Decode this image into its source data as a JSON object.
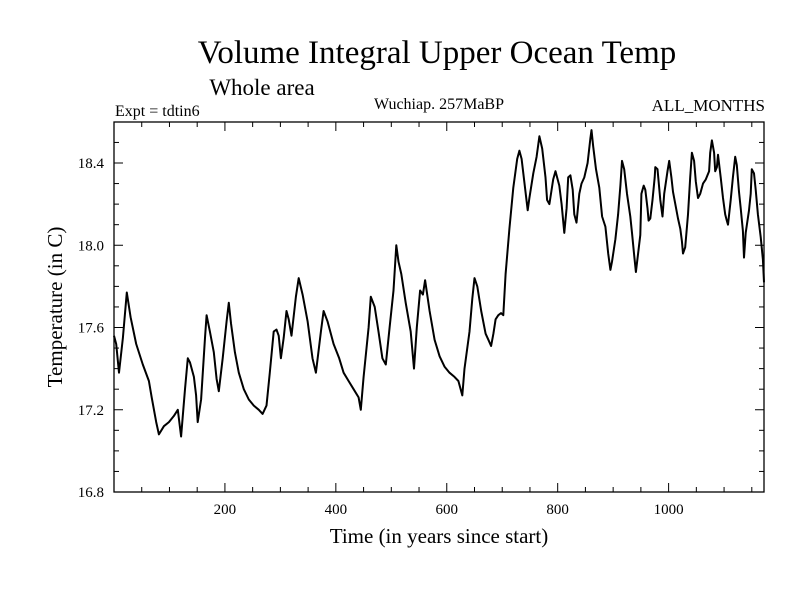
{
  "chart_data": {
    "type": "line",
    "title": "Volume Integral Upper Ocean Temp",
    "subtitle": "Whole area",
    "annotations": {
      "left": "Expt = tdtin6",
      "center": "Wuchiap. 257MaBP",
      "right": "ALL_MONTHS"
    },
    "xlabel": "Time (in years since start)",
    "ylabel": "Temperature (in C)",
    "xlim": [
      0,
      1172
    ],
    "ylim": [
      16.8,
      18.6
    ],
    "xticks": [
      200,
      400,
      600,
      800,
      1000
    ],
    "xtick_labels": [
      "200",
      "400",
      "600",
      "800",
      "1000"
    ],
    "xminor_step": 50,
    "yticks": [
      16.8,
      17.2,
      17.6,
      18.0,
      18.4
    ],
    "ytick_labels": [
      "16.8",
      "17.2",
      "17.6",
      "18.0",
      "18.4"
    ],
    "yminor_step": 0.1,
    "grid": false,
    "legend": "none",
    "series": [
      {
        "name": "Temperature",
        "color": "#000000",
        "x": [
          0,
          4,
          9,
          16,
          23,
          30,
          40,
          52,
          63,
          68,
          76,
          81,
          90,
          99,
          108,
          115,
          121,
          128,
          133,
          137,
          144,
          148,
          151,
          157,
          164,
          167,
          173,
          180,
          185,
          189,
          196,
          203,
          207,
          211,
          218,
          225,
          234,
          243,
          252,
          261,
          268,
          275,
          281,
          288,
          293,
          297,
          301,
          306,
          311,
          315,
          320,
          328,
          333,
          340,
          349,
          358,
          364,
          373,
          378,
          385,
          396,
          406,
          414,
          423,
          432,
          441,
          445,
          450,
          459,
          463,
          470,
          477,
          484,
          490,
          497,
          504,
          509,
          513,
          518,
          526,
          535,
          541,
          546,
          552,
          557,
          561,
          569,
          578,
          587,
          596,
          605,
          614,
          621,
          628,
          632,
          641,
          646,
          650,
          655,
          662,
          670,
          675,
          680,
          684,
          688,
          693,
          698,
          702,
          706,
          713,
          720,
          727,
          731,
          735,
          742,
          746,
          749,
          756,
          762,
          767,
          772,
          778,
          781,
          785,
          792,
          796,
          803,
          807,
          812,
          816,
          819,
          823,
          827,
          830,
          834,
          839,
          843,
          848,
          854,
          859,
          861,
          864,
          869,
          875,
          880,
          886,
          891,
          895,
          898,
          904,
          909,
          913,
          916,
          920,
          925,
          931,
          934,
          938,
          941,
          945,
          949,
          951,
          955,
          958,
          962,
          964,
          967,
          971,
          975,
          976,
          980,
          985,
          989,
          992,
          998,
          1001,
          1005,
          1008,
          1012,
          1017,
          1021,
          1024,
          1026,
          1030,
          1035,
          1039,
          1042,
          1046,
          1049,
          1053,
          1057,
          1062,
          1067,
          1073,
          1075,
          1078,
          1082,
          1084,
          1087,
          1089,
          1094,
          1098,
          1102,
          1105,
          1107,
          1112,
          1116,
          1120,
          1123,
          1127,
          1130,
          1134,
          1136,
          1139,
          1145,
          1148,
          1150,
          1154,
          1157,
          1161,
          1166,
          1170,
          1172
        ],
        "y": [
          17.56,
          17.52,
          17.38,
          17.55,
          17.77,
          17.65,
          17.52,
          17.42,
          17.34,
          17.26,
          17.14,
          17.08,
          17.12,
          17.14,
          17.17,
          17.2,
          17.07,
          17.3,
          17.45,
          17.43,
          17.36,
          17.27,
          17.14,
          17.25,
          17.55,
          17.66,
          17.58,
          17.48,
          17.35,
          17.29,
          17.45,
          17.63,
          17.72,
          17.62,
          17.48,
          17.38,
          17.3,
          17.25,
          17.22,
          17.2,
          17.18,
          17.22,
          17.38,
          17.58,
          17.59,
          17.56,
          17.45,
          17.55,
          17.68,
          17.64,
          17.56,
          17.75,
          17.84,
          17.76,
          17.63,
          17.45,
          17.38,
          17.58,
          17.68,
          17.63,
          17.52,
          17.45,
          17.38,
          17.34,
          17.3,
          17.26,
          17.2,
          17.36,
          17.6,
          17.75,
          17.7,
          17.58,
          17.45,
          17.42,
          17.6,
          17.78,
          18.0,
          17.92,
          17.86,
          17.72,
          17.58,
          17.4,
          17.6,
          17.78,
          17.76,
          17.83,
          17.68,
          17.54,
          17.46,
          17.41,
          17.38,
          17.36,
          17.34,
          17.27,
          17.4,
          17.58,
          17.74,
          17.84,
          17.8,
          17.68,
          17.57,
          17.54,
          17.51,
          17.57,
          17.64,
          17.66,
          17.67,
          17.66,
          17.86,
          18.08,
          18.28,
          18.42,
          18.46,
          18.42,
          18.26,
          18.17,
          18.23,
          18.35,
          18.43,
          18.53,
          18.47,
          18.33,
          18.22,
          18.2,
          18.32,
          18.36,
          18.29,
          18.2,
          18.06,
          18.18,
          18.33,
          18.34,
          18.27,
          18.15,
          18.11,
          18.25,
          18.3,
          18.33,
          18.4,
          18.52,
          18.56,
          18.48,
          18.37,
          18.28,
          18.14,
          18.09,
          17.96,
          17.88,
          17.92,
          18.03,
          18.15,
          18.29,
          18.41,
          18.37,
          18.25,
          18.14,
          18.06,
          17.95,
          17.87,
          17.96,
          18.05,
          18.25,
          18.29,
          18.27,
          18.18,
          18.12,
          18.13,
          18.22,
          18.33,
          18.38,
          18.37,
          18.22,
          18.14,
          18.25,
          18.36,
          18.41,
          18.33,
          18.26,
          18.2,
          18.13,
          18.08,
          18.02,
          17.96,
          17.99,
          18.15,
          18.33,
          18.45,
          18.41,
          18.31,
          18.23,
          18.25,
          18.3,
          18.32,
          18.36,
          18.45,
          18.51,
          18.45,
          18.36,
          18.38,
          18.44,
          18.33,
          18.23,
          18.15,
          18.12,
          18.1,
          18.22,
          18.33,
          18.43,
          18.39,
          18.26,
          18.18,
          18.07,
          17.94,
          18.06,
          18.17,
          18.25,
          18.37,
          18.35,
          18.27,
          18.15,
          18.04,
          17.93,
          17.82
        ]
      }
    ]
  }
}
